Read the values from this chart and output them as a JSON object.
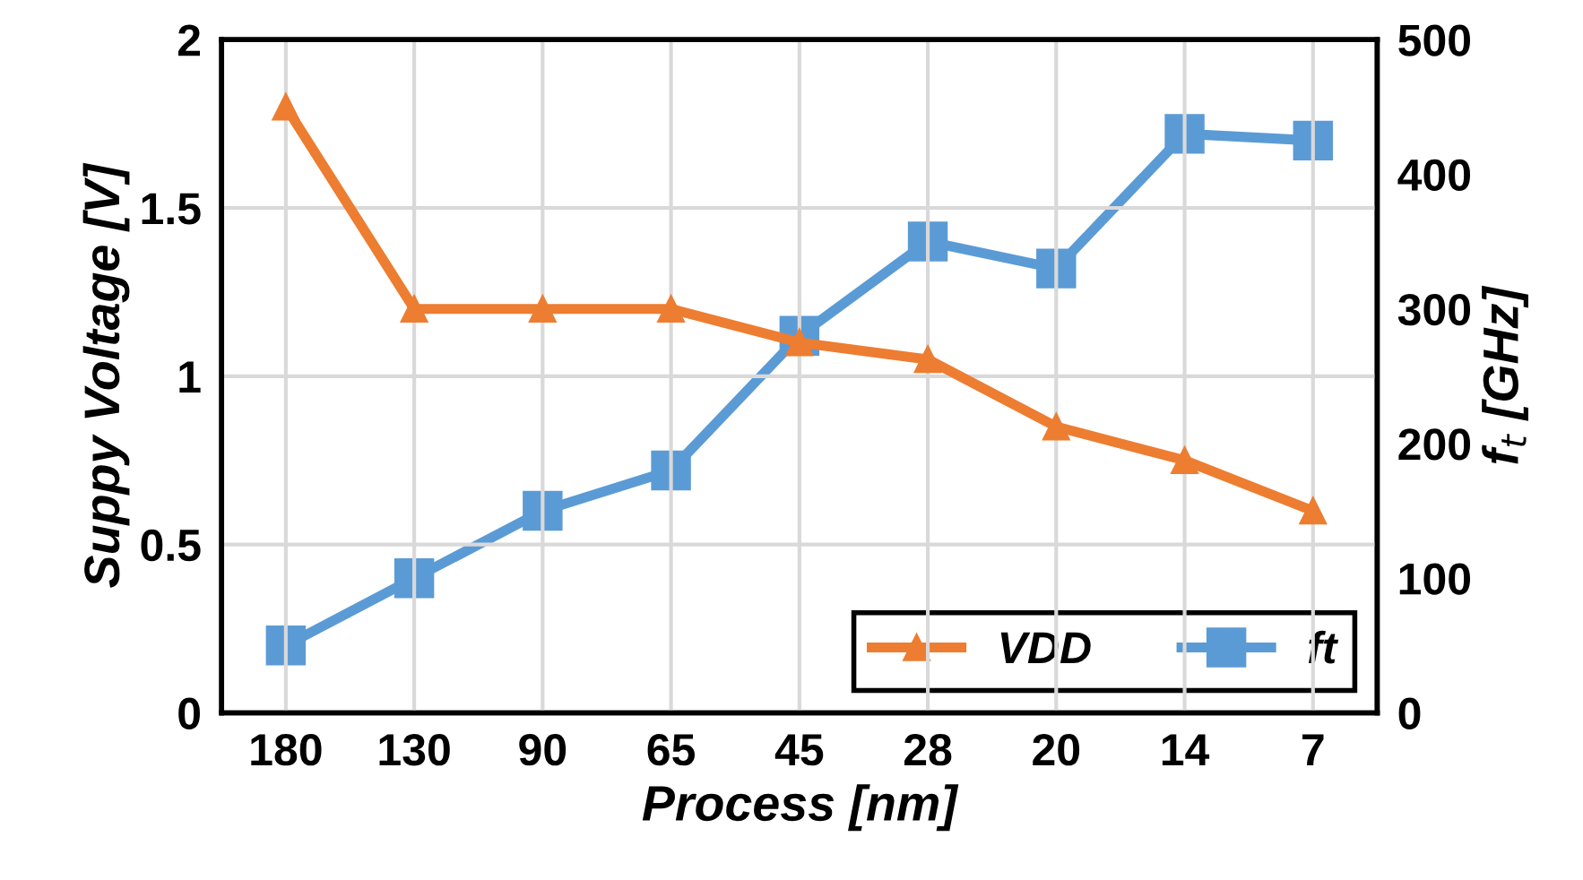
{
  "chart_data": {
    "type": "line",
    "xlabel": "Process [nm]",
    "ylabel": "Suppy Voltage [V]",
    "y2label": "f$_{t}$ [GHz]",
    "categories": [
      "180",
      "130",
      "90",
      "65",
      "45",
      "28",
      "20",
      "14",
      "7"
    ],
    "series": [
      {
        "name": "VDD",
        "color": "#ed7d31",
        "marker": "triangle",
        "values": [
          1.8,
          1.2,
          1.2,
          1.2,
          1.1,
          1.05,
          0.85,
          0.75,
          0.6
        ]
      },
      {
        "name": "ft",
        "color": "#5b9bd5",
        "marker": "square",
        "axis": "y2",
        "values": [
          50,
          100,
          150,
          180,
          280,
          350,
          330,
          430,
          425
        ]
      }
    ],
    "ylim": [
      0,
      2
    ],
    "yticks": [
      0,
      0.5,
      1,
      1.5,
      2
    ],
    "y2lim": [
      0,
      500
    ],
    "y2ticks": [
      0,
      100,
      200,
      300,
      400,
      500
    ],
    "grid": true,
    "legend": "bottom right",
    "line_style": "solid"
  }
}
